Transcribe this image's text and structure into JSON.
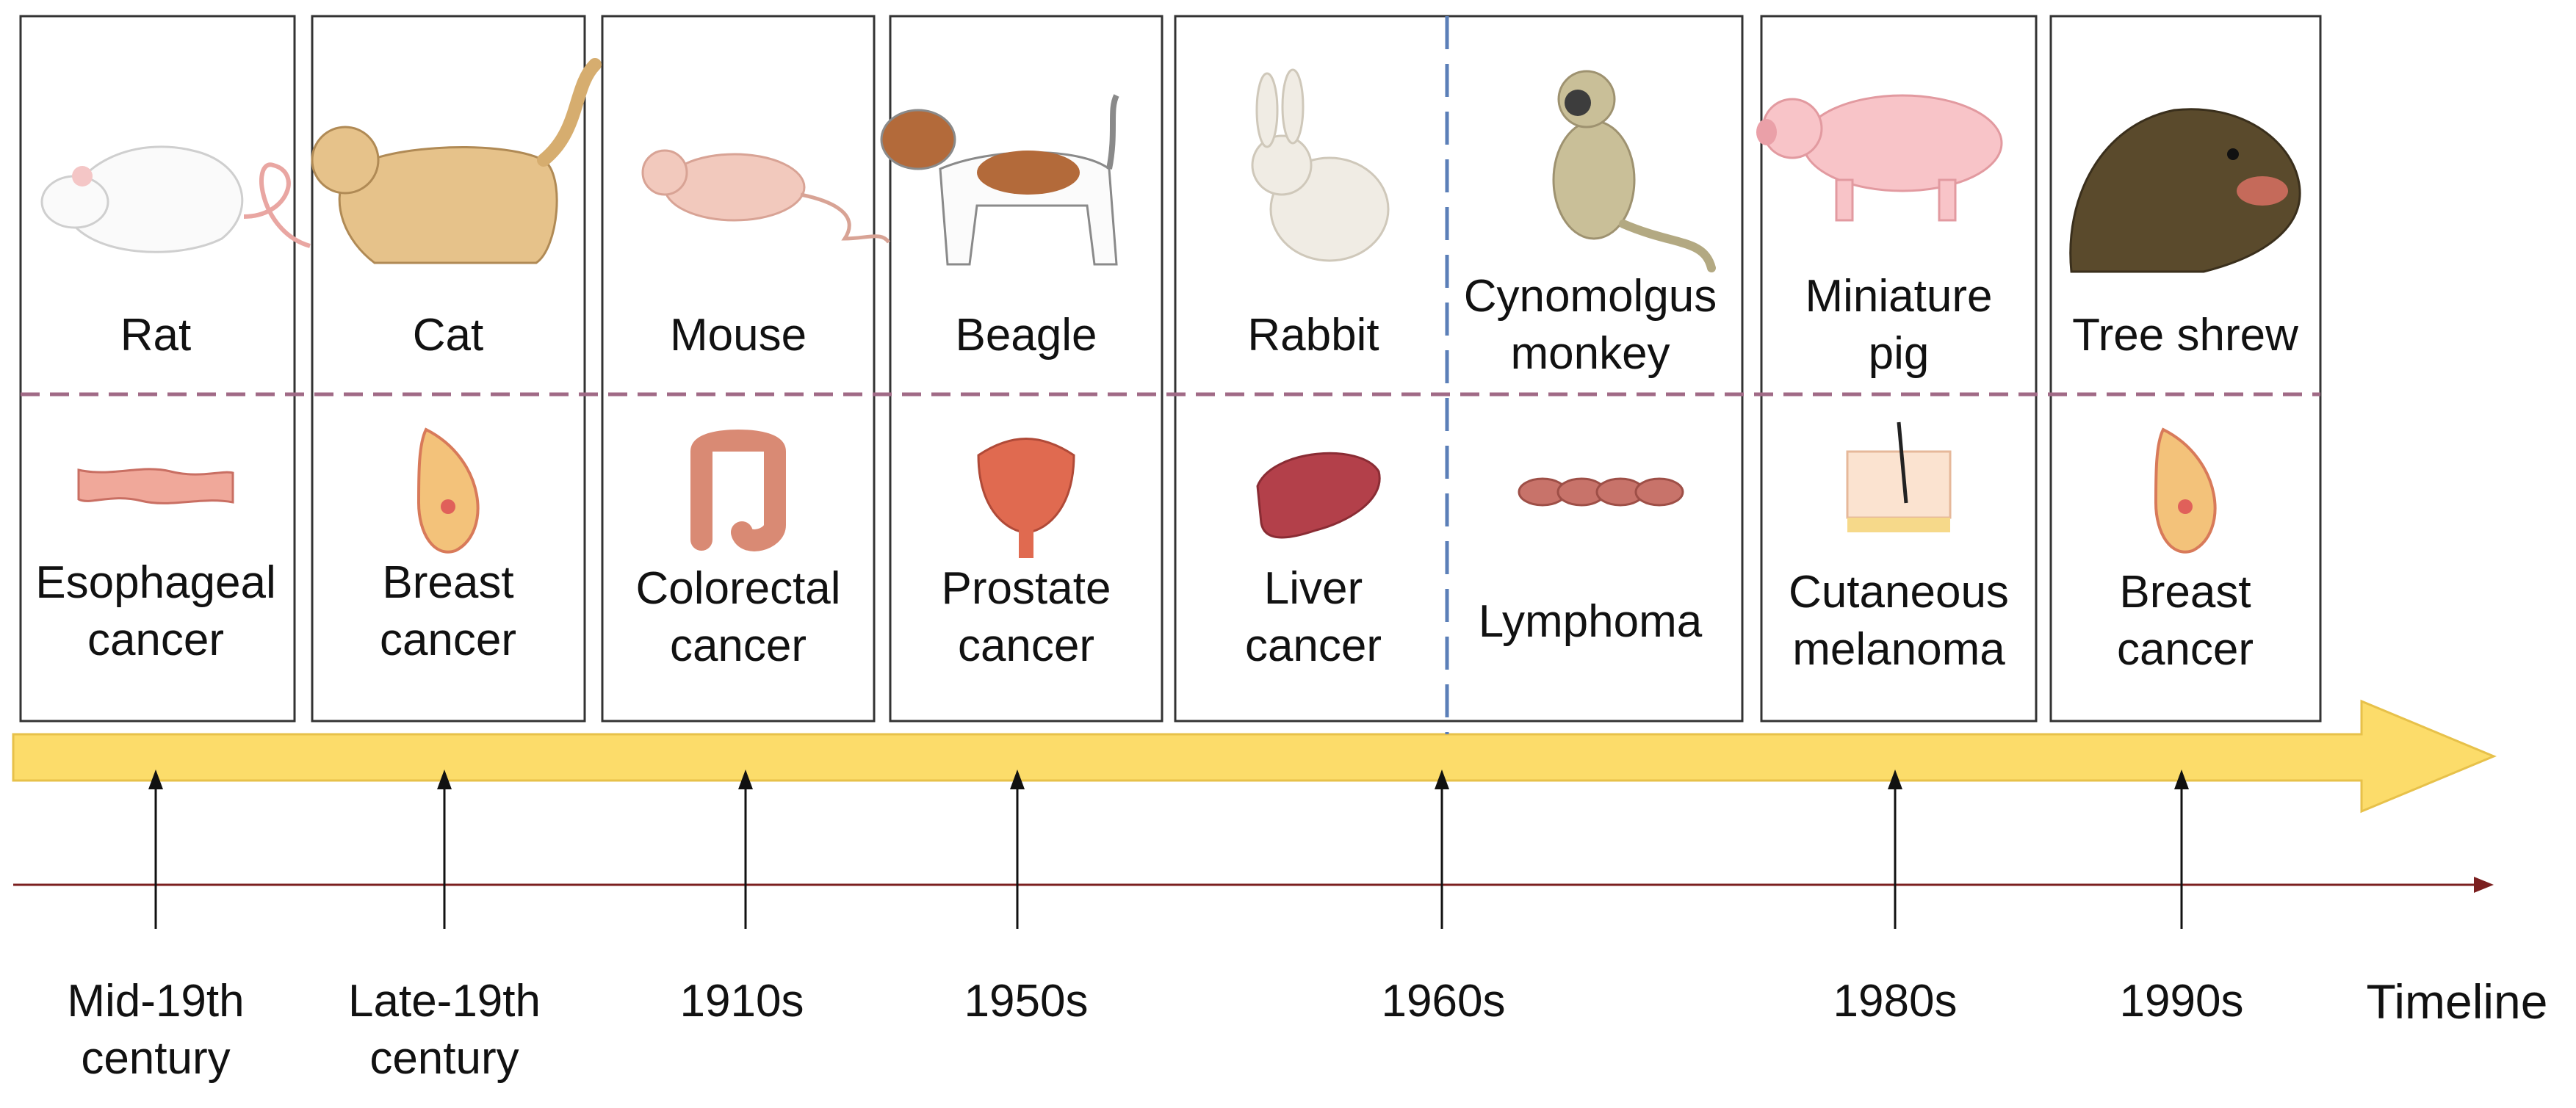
{
  "title": "",
  "timeline_label": "Timeline",
  "colors": {
    "arrow_fill": "#fcdc6a",
    "arrow_stroke": "#e7c14a",
    "baseline": "#7b1f1f",
    "separator": "#a06a86",
    "divider": "#5b7fb8",
    "panel_border": "#333333"
  },
  "entries": [
    {
      "animal": "Rat",
      "icon": "rat-icon",
      "cancer": "Esophageal cancer",
      "organ_icon": "esophagus-icon",
      "period": "Mid-19th century"
    },
    {
      "animal": "Cat",
      "icon": "cat-icon",
      "cancer": "Breast cancer",
      "organ_icon": "breast-icon",
      "period": "Late-19th century"
    },
    {
      "animal": "Mouse",
      "icon": "mouse-icon",
      "cancer": "Colorectal cancer",
      "organ_icon": "colon-icon",
      "period": "1910s"
    },
    {
      "animal": "Beagle",
      "icon": "beagle-icon",
      "cancer": "Prostate cancer",
      "organ_icon": "prostate-icon",
      "period": "1950s"
    },
    {
      "animal": "Rabbit",
      "icon": "rabbit-icon",
      "cancer": "Liver cancer",
      "organ_icon": "liver-icon",
      "period": "1960s"
    },
    {
      "animal": "Cynomolgus monkey",
      "icon": "monkey-icon",
      "cancer": "Lymphoma",
      "organ_icon": "lymph-vessel-icon",
      "period": ""
    },
    {
      "animal": "Miniature pig",
      "icon": "pig-icon",
      "cancer": "Cutaneous melanoma",
      "organ_icon": "skin-icon",
      "period": "1980s"
    },
    {
      "animal": "Tree shrew",
      "icon": "tree-shrew-icon",
      "cancer": "Breast cancer",
      "organ_icon": "breast-icon",
      "period": "1990s"
    }
  ]
}
